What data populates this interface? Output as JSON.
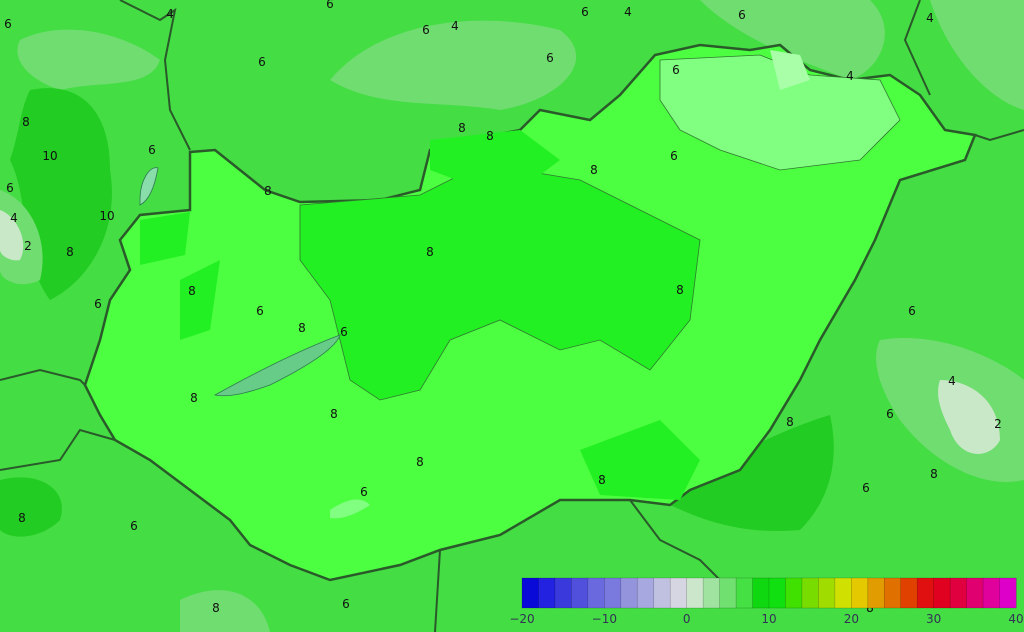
{
  "map": {
    "region": "Hungary",
    "contour_labels": [
      {
        "text": "6"
      },
      {
        "text": "4"
      },
      {
        "text": "6"
      },
      {
        "text": "6"
      },
      {
        "text": "4"
      },
      {
        "text": "6"
      },
      {
        "text": "4"
      },
      {
        "text": "6"
      },
      {
        "text": "4"
      },
      {
        "text": "4"
      },
      {
        "text": "8"
      },
      {
        "text": "10"
      },
      {
        "text": "6"
      },
      {
        "text": "6"
      },
      {
        "text": "4"
      },
      {
        "text": "2"
      },
      {
        "text": "8"
      },
      {
        "text": "10"
      },
      {
        "text": "6"
      },
      {
        "text": "8"
      },
      {
        "text": "6"
      },
      {
        "text": "8"
      },
      {
        "text": "8"
      },
      {
        "text": "6"
      },
      {
        "text": "6"
      },
      {
        "text": "8"
      },
      {
        "text": "6"
      },
      {
        "text": "8"
      },
      {
        "text": "8"
      },
      {
        "text": "8"
      },
      {
        "text": "6"
      },
      {
        "text": "8"
      },
      {
        "text": "8"
      },
      {
        "text": "8"
      },
      {
        "text": "6"
      },
      {
        "text": "8"
      },
      {
        "text": "8"
      },
      {
        "text": "6"
      },
      {
        "text": "6"
      },
      {
        "text": "4"
      },
      {
        "text": "2"
      },
      {
        "text": "6"
      },
      {
        "text": "8"
      },
      {
        "text": "6"
      },
      {
        "text": "8"
      },
      {
        "text": "8"
      },
      {
        "text": "6"
      },
      {
        "text": "8"
      },
      {
        "text": "6"
      },
      {
        "text": "8"
      }
    ]
  },
  "colorbar": {
    "min": -20,
    "max": 40,
    "step": 2,
    "ticks": [
      "−20",
      "−10",
      "0",
      "10",
      "20",
      "30",
      "40"
    ],
    "colors": [
      "#0a0ad8",
      "#2222e0",
      "#3a3adc",
      "#5050dc",
      "#6a6ade",
      "#7a7ade",
      "#9494dc",
      "#a8a8e0",
      "#c0c0e0",
      "#d6d6e2",
      "#cce6cc",
      "#a0e2a0",
      "#70e070",
      "#44e044",
      "#10d810",
      "#10e010",
      "#40e000",
      "#78dc00",
      "#a0dc00",
      "#d0e000",
      "#e4c800",
      "#e09c00",
      "#e07000",
      "#e04000",
      "#e01010",
      "#e00020",
      "#e00040",
      "#e00070",
      "#e0009c",
      "#dc00c8"
    ]
  }
}
